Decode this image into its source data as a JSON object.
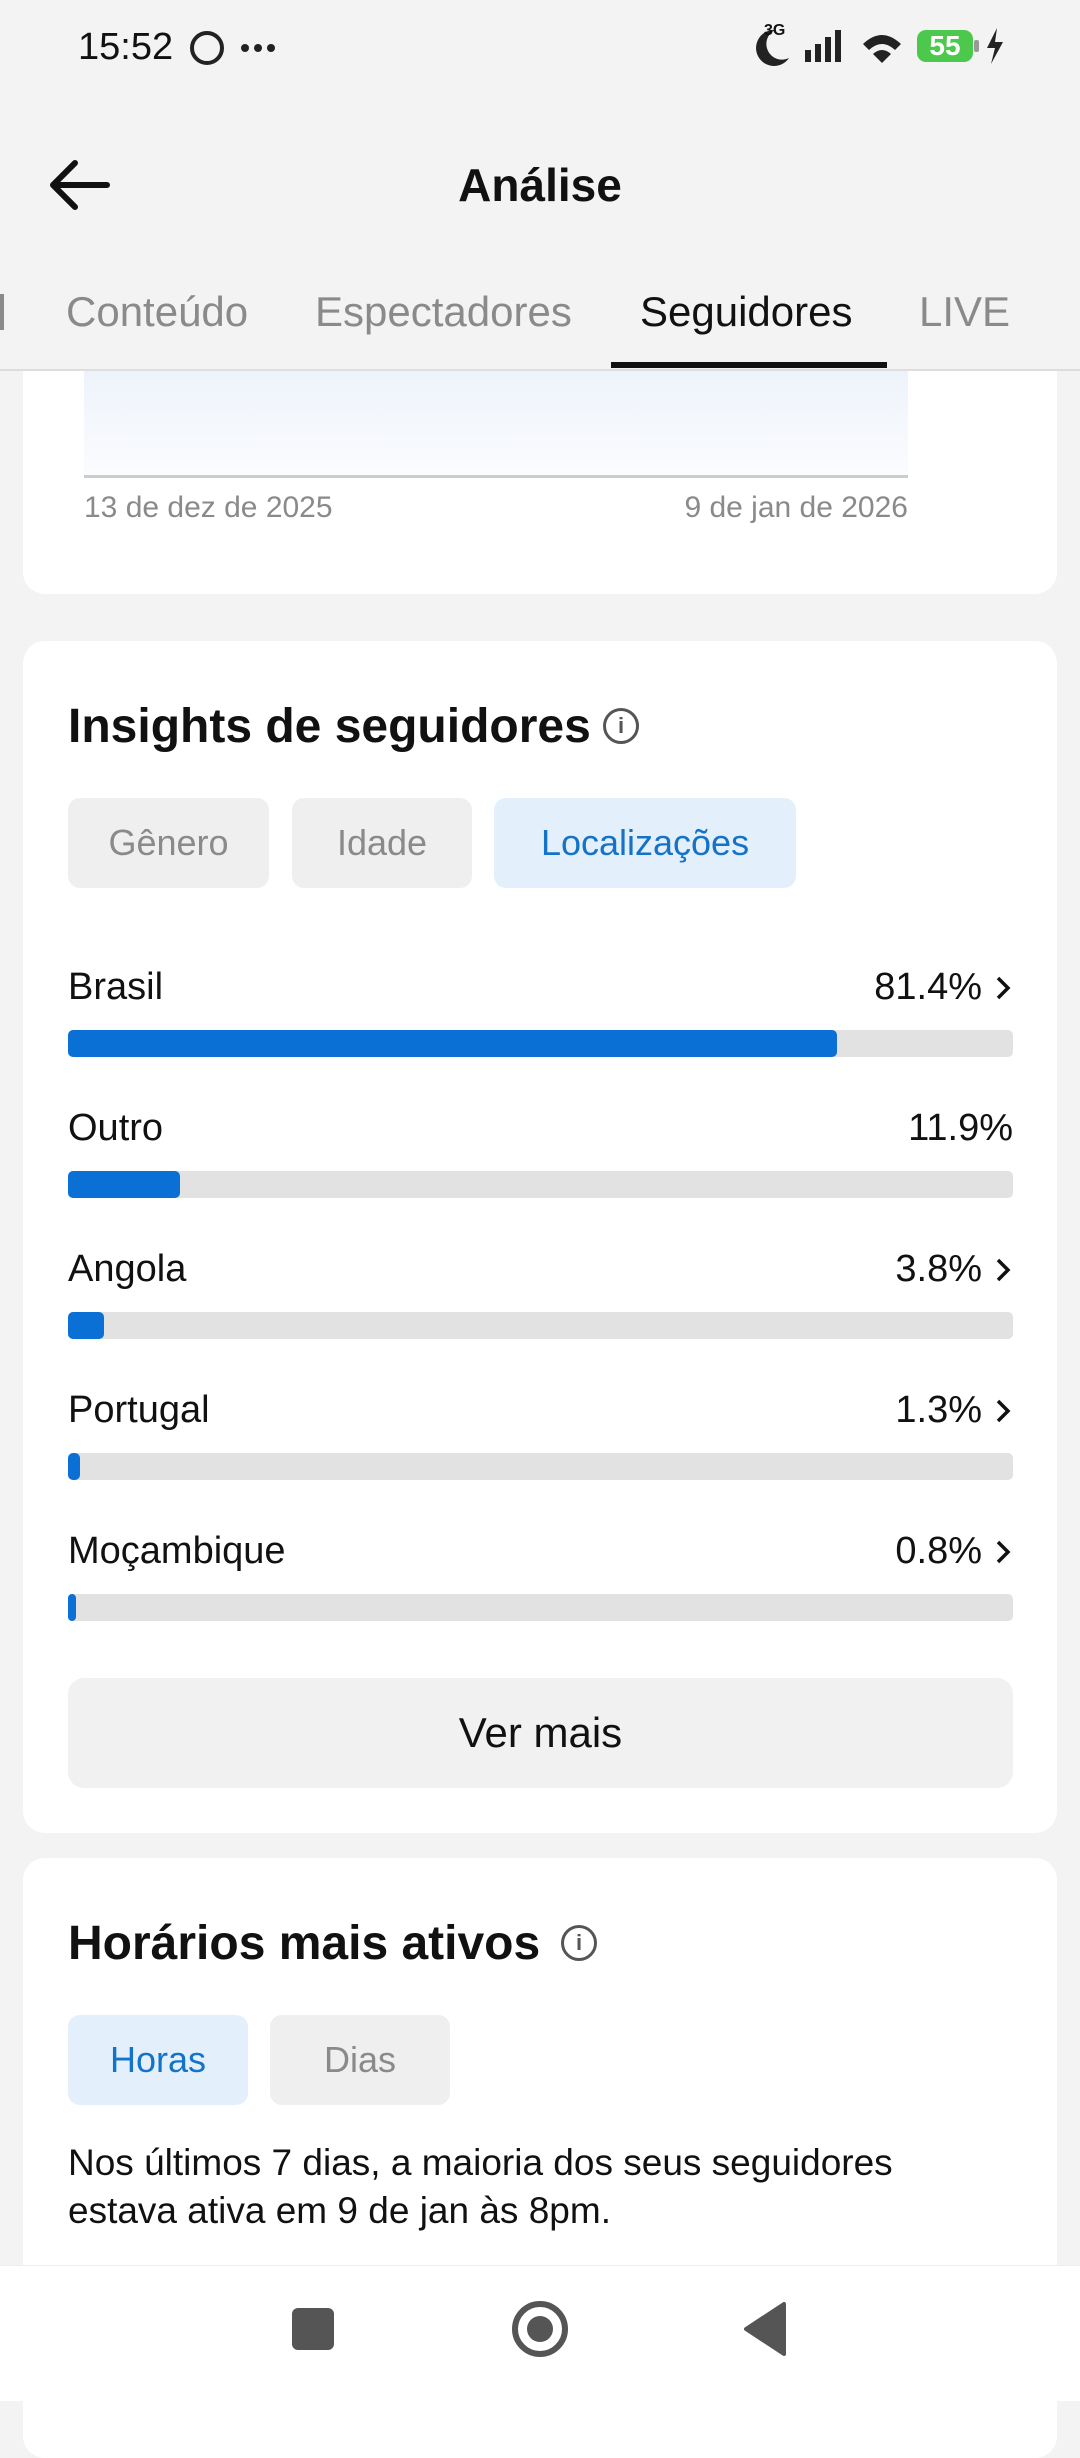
{
  "status_bar": {
    "time": "15:52",
    "network": "3G",
    "battery": "55"
  },
  "header": {
    "title": "Análise"
  },
  "tabs": [
    "Conteúdo",
    "Espectadores",
    "Seguidores",
    "LIVE"
  ],
  "growth_chart": {
    "x_labels": [
      "13 de dez de 2025",
      "9 de jan de 2026"
    ]
  },
  "insights": {
    "title": "Insights de seguidores",
    "filters": [
      "Gênero",
      "Idade",
      "Localizações"
    ],
    "locations": {
      "xlim": [
        0,
        100
      ],
      "items": [
        {
          "name": "Brasil",
          "value": 81.4,
          "label": "81.4%"
        },
        {
          "name": "Outro",
          "value": 11.9,
          "label": "11.9%"
        },
        {
          "name": "Angola",
          "value": 3.8,
          "label": "3.8%"
        },
        {
          "name": "Portugal",
          "value": 1.3,
          "label": "1.3%"
        },
        {
          "name": "Moçambique",
          "value": 0.8,
          "label": "0.8%"
        }
      ]
    },
    "button": "Ver mais"
  },
  "active_times": {
    "title": "Horários mais ativos",
    "filters": [
      "Horas",
      "Dias"
    ],
    "text_lines": [
      "Nos últimos 7 dias, a maioria dos seus seguidores",
      "estava ativa em 9 de jan às 8pm."
    ]
  }
}
